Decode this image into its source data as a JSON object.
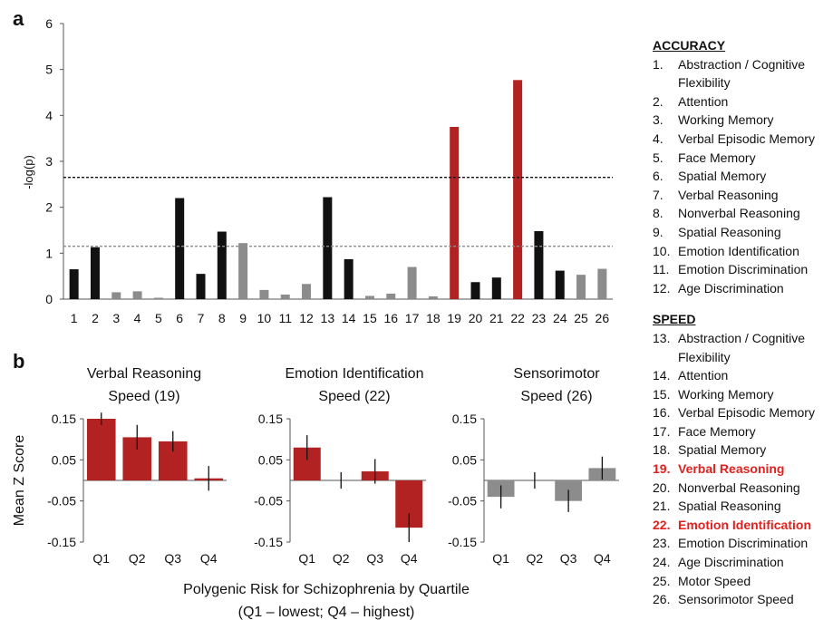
{
  "panel_labels": {
    "a": "a",
    "b": "b"
  },
  "colors": {
    "black": "#111111",
    "gray": "#8c8c8c",
    "red": "#b22222",
    "highlight": "#e0211f",
    "black_dash": "#111111",
    "gray_dash": "#8c8c8c"
  },
  "chart_data": [
    {
      "type": "bar",
      "ylabel": "-log(p)",
      "ylim": [
        0,
        6
      ],
      "yticks": [
        "0",
        "1",
        "2",
        "3",
        "4",
        "5",
        "6"
      ],
      "categories": [
        "1",
        "2",
        "3",
        "4",
        "5",
        "6",
        "7",
        "8",
        "9",
        "10",
        "11",
        "12",
        "13",
        "14",
        "15",
        "16",
        "17",
        "18",
        "19",
        "20",
        "21",
        "22",
        "23",
        "24",
        "25",
        "26"
      ],
      "values": [
        0.65,
        1.13,
        0.15,
        0.17,
        0.03,
        2.2,
        0.55,
        1.47,
        1.22,
        0.2,
        0.1,
        0.33,
        2.22,
        0.87,
        0.07,
        0.12,
        0.7,
        0.06,
        3.75,
        0.37,
        0.47,
        4.77,
        1.48,
        0.62,
        0.53,
        0.66
      ],
      "bar_colors": [
        "black",
        "black",
        "gray",
        "gray",
        "gray",
        "black",
        "black",
        "black",
        "gray",
        "gray",
        "gray",
        "gray",
        "black",
        "black",
        "gray",
        "gray",
        "gray",
        "gray",
        "red",
        "black",
        "black",
        "red",
        "black",
        "black",
        "gray",
        "gray"
      ],
      "thresholds": [
        {
          "value": 2.65,
          "color": "black"
        },
        {
          "value": 1.15,
          "color": "gray"
        }
      ]
    },
    {
      "type": "bar",
      "title": "Verbal Reasoning\nSpeed (19)",
      "ylabel": "Mean Z Score",
      "ylim": [
        -0.15,
        0.15
      ],
      "yticks": [
        "0.15",
        "0.05",
        "-0.05",
        "-0.15"
      ],
      "categories": [
        "Q1",
        "Q2",
        "Q3",
        "Q4"
      ],
      "values": [
        0.15,
        0.105,
        0.095,
        0.005
      ],
      "errors": [
        0.015,
        0.03,
        0.025,
        0.03
      ],
      "color": "red"
    },
    {
      "type": "bar",
      "title": "Emotion Identification\nSpeed (22)",
      "ylim": [
        -0.15,
        0.15
      ],
      "yticks": [
        "0.15",
        "0.05",
        "-0.05",
        "-0.15"
      ],
      "categories": [
        "Q1",
        "Q2",
        "Q3",
        "Q4"
      ],
      "values": [
        0.08,
        0.0,
        0.022,
        -0.115
      ],
      "errors": [
        0.03,
        0.02,
        0.03,
        0.035
      ],
      "color": "red"
    },
    {
      "type": "bar",
      "title": "Sensorimotor\nSpeed (26)",
      "ylim": [
        -0.15,
        0.15
      ],
      "yticks": [
        "0.15",
        "0.05",
        "-0.05",
        "-0.15"
      ],
      "categories": [
        "Q1",
        "Q2",
        "Q3",
        "Q4"
      ],
      "values": [
        -0.04,
        0.0,
        -0.05,
        0.03
      ],
      "errors": [
        0.028,
        0.02,
        0.027,
        0.028
      ],
      "color": "gray"
    }
  ],
  "bottom_xlabel": "Polygenic Risk for Schizophrenia by Quartile",
  "bottom_xlabel_sub": "(Q1 – lowest; Q4 – highest)",
  "legend": {
    "accuracy_heading": "ACCURACY",
    "accuracy_items": [
      {
        "num": "1.",
        "label": "Abstraction / Cognitive Flexibility"
      },
      {
        "num": "2.",
        "label": "Attention"
      },
      {
        "num": "3.",
        "label": "Working Memory"
      },
      {
        "num": "4.",
        "label": "Verbal Episodic Memory"
      },
      {
        "num": "5.",
        "label": "Face Memory"
      },
      {
        "num": "6.",
        "label": "Spatial Memory"
      },
      {
        "num": "7.",
        "label": "Verbal Reasoning"
      },
      {
        "num": "8.",
        "label": "Nonverbal Reasoning"
      },
      {
        "num": "9.",
        "label": "Spatial Reasoning"
      },
      {
        "num": "10.",
        "label": "Emotion Identification"
      },
      {
        "num": "11.",
        "label": "Emotion Discrimination"
      },
      {
        "num": "12.",
        "label": "Age Discrimination"
      }
    ],
    "speed_heading": "SPEED",
    "speed_items": [
      {
        "num": "13.",
        "label": "Abstraction / Cognitive Flexibility"
      },
      {
        "num": "14.",
        "label": "Attention"
      },
      {
        "num": "15.",
        "label": "Working Memory"
      },
      {
        "num": "16.",
        "label": "Verbal Episodic Memory"
      },
      {
        "num": "17.",
        "label": "Face Memory"
      },
      {
        "num": "18.",
        "label": "Spatial Memory"
      },
      {
        "num": "19.",
        "label": "Verbal Reasoning",
        "highlight": true
      },
      {
        "num": "20.",
        "label": "Nonverbal Reasoning"
      },
      {
        "num": "21.",
        "label": "Spatial Reasoning"
      },
      {
        "num": "22.",
        "label": "Emotion Identification",
        "highlight": true
      },
      {
        "num": "23.",
        "label": "Emotion Discrimination"
      },
      {
        "num": "24.",
        "label": "Age Discrimination"
      },
      {
        "num": "25.",
        "label": "Motor Speed"
      },
      {
        "num": "26.",
        "label": "Sensorimotor Speed"
      }
    ]
  }
}
